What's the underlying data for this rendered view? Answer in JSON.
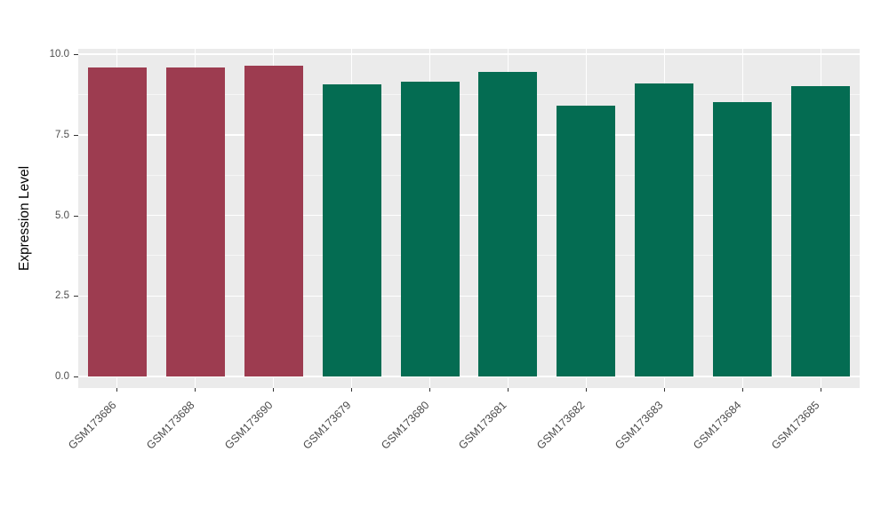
{
  "chart_data": {
    "type": "bar",
    "title": "",
    "xlabel": "",
    "ylabel": "Expression Level",
    "categories": [
      "GSM173686",
      "GSM173688",
      "GSM173690",
      "GSM173679",
      "GSM173680",
      "GSM173681",
      "GSM173682",
      "GSM173683",
      "GSM173684",
      "GSM173685"
    ],
    "values": [
      9.6,
      9.6,
      9.65,
      9.05,
      9.15,
      9.45,
      8.4,
      9.1,
      8.5,
      9.0
    ],
    "bar_colors": [
      "#9d3c50",
      "#9d3c50",
      "#9d3c50",
      "#046c52",
      "#046c52",
      "#046c52",
      "#046c52",
      "#046c52",
      "#046c52",
      "#046c52"
    ],
    "group_colors": {
      "group_red": "#9d3c50",
      "group_green": "#046c52"
    },
    "ylim": [
      0,
      10
    ],
    "yticks": [
      0,
      2.5,
      5,
      7.5,
      10
    ],
    "ytick_labels": [
      "0.0",
      "2.5",
      "5.0",
      "7.5",
      "10.0"
    ],
    "yticks_minor": [
      1.25,
      3.75,
      6.25,
      8.75
    ],
    "grid": true,
    "legend": "none",
    "panel_background": "#ebebeb",
    "grid_color": "#ffffff",
    "tick_color": "#333333",
    "axis_text_color": "#4d4d4d"
  }
}
